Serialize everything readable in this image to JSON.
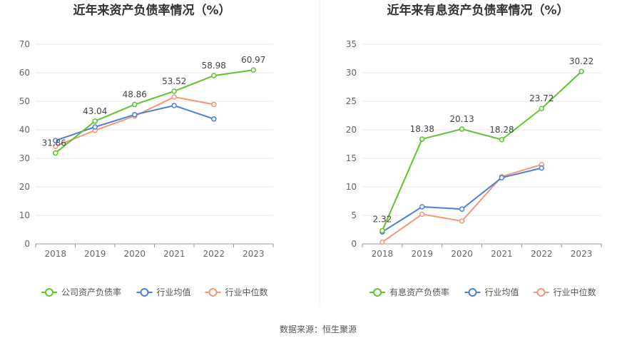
{
  "source_label": "数据来源：恒生聚源",
  "colors": {
    "green": "#5cc52e",
    "blue": "#4a7fdc",
    "orange": "#f4967a",
    "axis": "#999999",
    "grid": "#e8e8e8"
  },
  "chart_data": [
    {
      "type": "line",
      "title": "近年来资产负债率情况（%）",
      "categories": [
        "2018",
        "2019",
        "2020",
        "2021",
        "2022",
        "2023"
      ],
      "y_ticks": [
        "0",
        "10",
        "20",
        "30",
        "40",
        "50",
        "60",
        "70"
      ],
      "ylim": [
        0,
        70
      ],
      "grid": true,
      "legend_position": "bottom",
      "series": [
        {
          "name": "公司资产负债率",
          "color": "#5cc52e",
          "values": [
            31.86,
            43.04,
            48.86,
            53.52,
            58.98,
            60.97
          ],
          "labels": [
            "31.86",
            "43.04",
            "48.86",
            "53.52",
            "58.98",
            "60.97"
          ]
        },
        {
          "name": "行业均值",
          "color": "#4a7fdc",
          "values": [
            36.2,
            41.0,
            45.3,
            48.5,
            43.8,
            null
          ]
        },
        {
          "name": "行业中位数",
          "color": "#f4967a",
          "values": [
            34.2,
            39.8,
            44.8,
            51.5,
            48.9,
            null
          ]
        }
      ]
    },
    {
      "type": "line",
      "title": "近年来有息资产负债率情况（%）",
      "categories": [
        "2018",
        "2019",
        "2020",
        "2021",
        "2022",
        "2023"
      ],
      "y_ticks": [
        "0",
        "5",
        "10",
        "15",
        "20",
        "25",
        "30",
        "35"
      ],
      "ylim": [
        0,
        35
      ],
      "grid": true,
      "legend_position": "bottom",
      "series": [
        {
          "name": "有息资产负债率",
          "color": "#5cc52e",
          "values": [
            2.32,
            18.38,
            20.13,
            18.28,
            23.72,
            30.22
          ],
          "labels": [
            "2.32",
            "18.38",
            "20.13",
            "18.28",
            "23.72",
            "30.22"
          ]
        },
        {
          "name": "行业均值",
          "color": "#4a7fdc",
          "values": [
            2.1,
            6.5,
            6.1,
            11.6,
            13.3,
            null
          ]
        },
        {
          "name": "行业中位数",
          "color": "#f4967a",
          "values": [
            0.3,
            5.2,
            4.0,
            11.8,
            13.9,
            null
          ]
        }
      ]
    }
  ]
}
